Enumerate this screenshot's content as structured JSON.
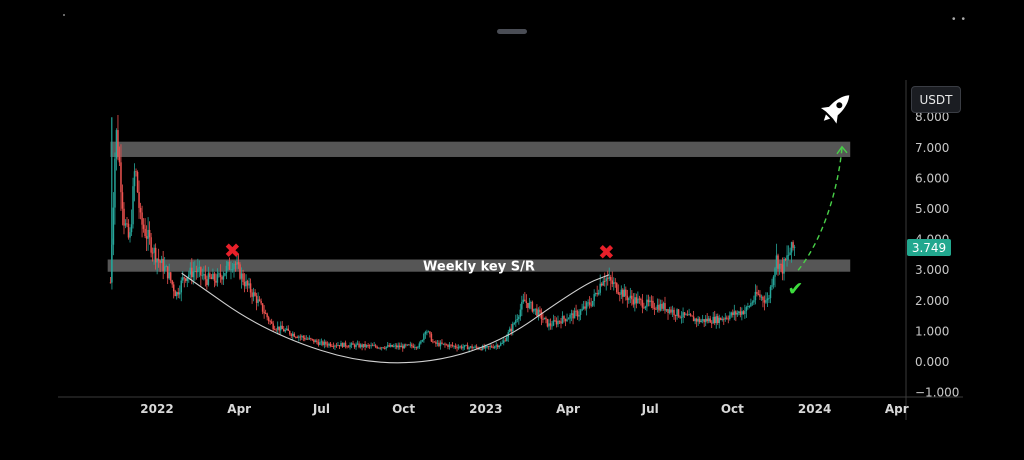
{
  "chart_data": {
    "type": "candlestick",
    "y_axis": {
      "ticks": [
        "8.000",
        "7.000",
        "6.000",
        "5.000",
        "4.000",
        "3.000",
        "2.000",
        "1.000",
        "0.000",
        "−1.000"
      ],
      "range": [
        -1.0,
        8.1
      ]
    },
    "x_axis": {
      "ticks": [
        "2022",
        "Apr",
        "Jul",
        "Oct",
        "2023",
        "Apr",
        "Jul",
        "Oct",
        "2024",
        "Apr"
      ],
      "bold": [
        true,
        true,
        true,
        true,
        true,
        true,
        true,
        true,
        true,
        true
      ],
      "range_months": [
        -1.8,
        27.5
      ]
    },
    "unit_label": "USDT",
    "last_price": "3.749",
    "zones": [
      {
        "label": "",
        "y_low": 6.7,
        "y_high": 7.2,
        "x_start": -1.7,
        "x_end": 25.3
      },
      {
        "label": "Weekly key S/R",
        "y_low": 2.95,
        "y_high": 3.35,
        "x_start": -1.8,
        "x_end": 25.3
      }
    ],
    "rejections": [
      {
        "symbol": "✖",
        "x": 2.75,
        "y": 3.65
      },
      {
        "symbol": "✖",
        "x": 16.4,
        "y": 3.6
      }
    ],
    "confirmation": {
      "symbol": "✔",
      "x": 23.3,
      "y": 2.45
    },
    "rocket": {
      "x": 24.8,
      "y": 8.3
    },
    "projection": [
      [
        23.4,
        3.0
      ],
      [
        24.3,
        4.0
      ],
      [
        24.85,
        5.6
      ],
      [
        25.0,
        7.0
      ]
    ],
    "cup_curve": [
      [
        0.9,
        2.9
      ],
      [
        4.0,
        0.95
      ],
      [
        8.0,
        -0.2
      ],
      [
        12.0,
        0.3
      ],
      [
        15.5,
        2.5
      ],
      [
        16.5,
        2.85
      ]
    ],
    "price_anchors": [
      [
        -1.7,
        2.6
      ],
      [
        -1.5,
        7.6
      ],
      [
        -1.35,
        6.3
      ],
      [
        -1.2,
        4.6
      ],
      [
        -1.0,
        3.9
      ],
      [
        -0.8,
        6.4
      ],
      [
        -0.6,
        4.6
      ],
      [
        -0.3,
        4.0
      ],
      [
        0.0,
        3.4
      ],
      [
        0.4,
        2.9
      ],
      [
        0.7,
        2.2
      ],
      [
        1.0,
        2.8
      ],
      [
        1.4,
        3.0
      ],
      [
        1.8,
        2.7
      ],
      [
        2.2,
        2.7
      ],
      [
        2.8,
        3.3
      ],
      [
        3.2,
        2.6
      ],
      [
        3.6,
        2.1
      ],
      [
        4.2,
        1.2
      ],
      [
        5.0,
        0.9
      ],
      [
        6.0,
        0.6
      ],
      [
        7.0,
        0.55
      ],
      [
        8.0,
        0.5
      ],
      [
        9.0,
        0.5
      ],
      [
        9.6,
        0.55
      ],
      [
        9.8,
        1.1
      ],
      [
        10.1,
        0.6
      ],
      [
        11.0,
        0.5
      ],
      [
        12.0,
        0.45
      ],
      [
        12.6,
        0.6
      ],
      [
        13.0,
        1.2
      ],
      [
        13.4,
        2.0
      ],
      [
        13.8,
        1.7
      ],
      [
        14.3,
        1.2
      ],
      [
        14.8,
        1.4
      ],
      [
        15.4,
        1.6
      ],
      [
        15.9,
        2.0
      ],
      [
        16.3,
        2.8
      ],
      [
        16.7,
        2.5
      ],
      [
        17.2,
        2.1
      ],
      [
        17.8,
        1.9
      ],
      [
        18.5,
        1.8
      ],
      [
        19.2,
        1.5
      ],
      [
        19.8,
        1.35
      ],
      [
        20.5,
        1.4
      ],
      [
        21.0,
        1.55
      ],
      [
        21.5,
        1.7
      ],
      [
        21.9,
        2.2
      ],
      [
        22.3,
        2.0
      ],
      [
        22.6,
        3.4
      ],
      [
        22.8,
        3.0
      ],
      [
        23.1,
        3.6
      ],
      [
        23.3,
        3.8
      ]
    ]
  }
}
